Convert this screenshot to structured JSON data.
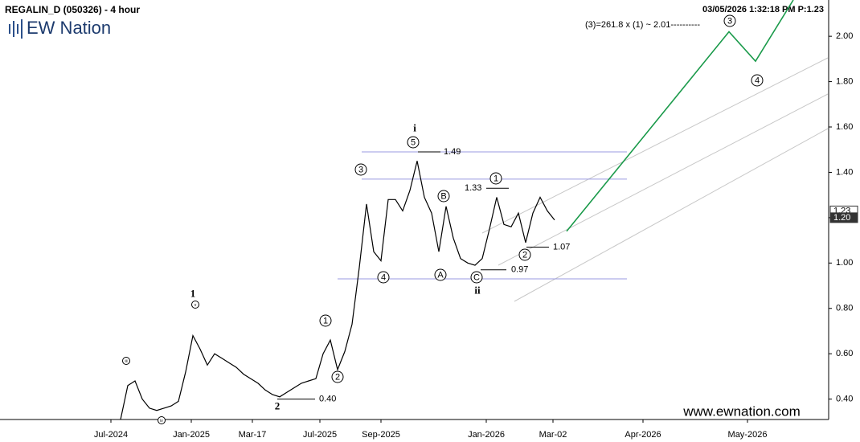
{
  "header": {
    "title": "REGALIN_D (050326) - 4 hour",
    "timestamp": "03/05/2026 1:32:18 PM  P:1.23",
    "logo": "EW Nation",
    "website": "www.ewnation.com"
  },
  "chart_data": {
    "type": "line",
    "annotation": "(3)=261.8 x (1) ~ 2.01----------",
    "x_labels": [
      "Jul-2024",
      "Jan-2025",
      "Mar-17",
      "Jul-2025",
      "Sep-2025",
      "Jan-2026",
      "Mar-02",
      "Apr-2026",
      "May-2026"
    ],
    "series": [
      {
        "name": "Price",
        "color": "#000000",
        "values": [
          0.31,
          0.46,
          0.48,
          0.4,
          0.36,
          0.35,
          0.36,
          0.37,
          0.39,
          0.52,
          0.68,
          0.62,
          0.55,
          0.6,
          0.58,
          0.56,
          0.54,
          0.51,
          0.49,
          0.47,
          0.44,
          0.42,
          0.41,
          0.43,
          0.45,
          0.47,
          0.48,
          0.49,
          0.6,
          0.66,
          0.53,
          0.61,
          0.73,
          0.98,
          1.26,
          1.05,
          1.01,
          1.28,
          1.28,
          1.23,
          1.32,
          1.45,
          1.29,
          1.22,
          1.05,
          1.25,
          1.11,
          1.02,
          1.0,
          0.99,
          1.02,
          1.15,
          1.29,
          1.17,
          1.16,
          1.22,
          1.09,
          1.22,
          1.29,
          1.23,
          1.19
        ]
      },
      {
        "name": "Projection",
        "color": "#1a9a4a",
        "values": [
          1.14,
          2.02,
          1.89,
          2.16
        ]
      }
    ],
    "levels": [
      1.49,
      1.37,
      0.93
    ],
    "level_labels": [
      1.49,
      1.33,
      1.07,
      0.97,
      {
        "value": 0.4,
        "label": "0.40"
      }
    ],
    "wave_labels": [
      {
        "text": "iii",
        "circled": true
      },
      {
        "text": "iv",
        "circled": true
      },
      {
        "text": "v",
        "circled": true
      },
      {
        "text": "1",
        "circled": false
      },
      {
        "text": "2",
        "circled": false
      },
      {
        "text": "1",
        "circled": true
      },
      {
        "text": "2",
        "circled": true
      },
      {
        "text": "3",
        "circled": true
      },
      {
        "text": "4",
        "circled": true
      },
      {
        "text": "5",
        "circled": true
      },
      {
        "text": "i",
        "circled": false
      },
      {
        "text": "A",
        "circled": true
      },
      {
        "text": "B",
        "circled": true
      },
      {
        "text": "C",
        "circled": true
      },
      {
        "text": "ii",
        "circled": false
      },
      {
        "text": "1",
        "circled": true
      },
      {
        "text": "2",
        "circled": true
      },
      {
        "text": "3",
        "circled": true
      },
      {
        "text": "4",
        "circled": true
      }
    ],
    "price_tags": [
      1.23,
      {
        "value": 1.2,
        "label": "1.20"
      }
    ],
    "ylim": [
      0.31,
      2.16
    ],
    "yticks": [
      {
        "value": 0.4,
        "label": "0.40"
      },
      {
        "value": 0.6,
        "label": "0.60"
      },
      {
        "value": 0.8,
        "label": "0.80"
      },
      {
        "value": 1.0,
        "label": "1.00"
      },
      {
        "value": 1.2,
        "label": "1.20"
      },
      {
        "value": 1.4,
        "label": "1.40"
      },
      {
        "value": 1.6,
        "label": "1.60"
      },
      {
        "value": 1.8,
        "label": "1.80"
      },
      {
        "value": 2.0,
        "label": "2.00"
      }
    ]
  }
}
